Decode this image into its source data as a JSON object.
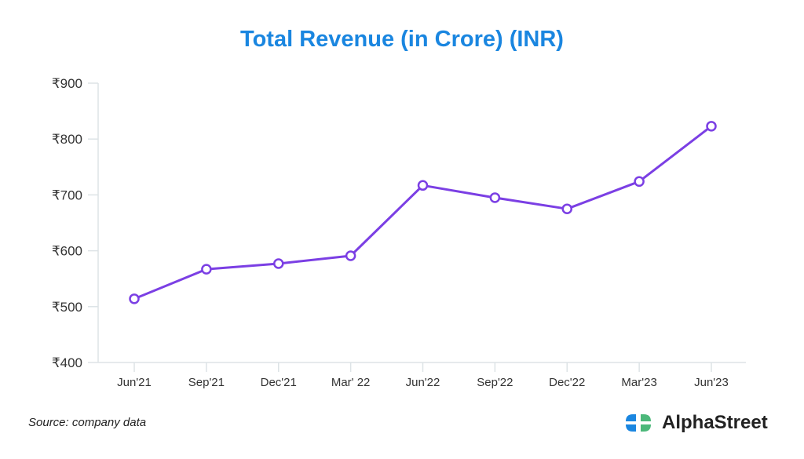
{
  "chart_data": {
    "type": "line",
    "title": "Total Revenue (in Crore) (INR)",
    "xlabel": "",
    "ylabel": "",
    "categories": [
      "Jun'21",
      "Sep'21",
      "Dec'21",
      "Mar' 22",
      "Jun'22",
      "Sep'22",
      "Dec'22",
      "Mar'23",
      "Jun'23"
    ],
    "series": [
      {
        "name": "Total Revenue",
        "values": [
          514,
          567,
          577,
          591,
          717,
          695,
          675,
          724,
          823
        ],
        "color": "#7b3fe4"
      }
    ],
    "ylim": [
      400,
      900
    ],
    "yticks": [
      400,
      500,
      600,
      700,
      800,
      900
    ],
    "ytick_prefix": "₹",
    "grid": false,
    "legend": "none"
  },
  "footer": {
    "source": "Source: company data",
    "brand": "AlphaStreet"
  },
  "colors": {
    "title": "#1a86e0",
    "line": "#7b3fe4",
    "axis": "#dde3e6",
    "logo_blue": "#1a86e0",
    "logo_green": "#4cb87a"
  }
}
